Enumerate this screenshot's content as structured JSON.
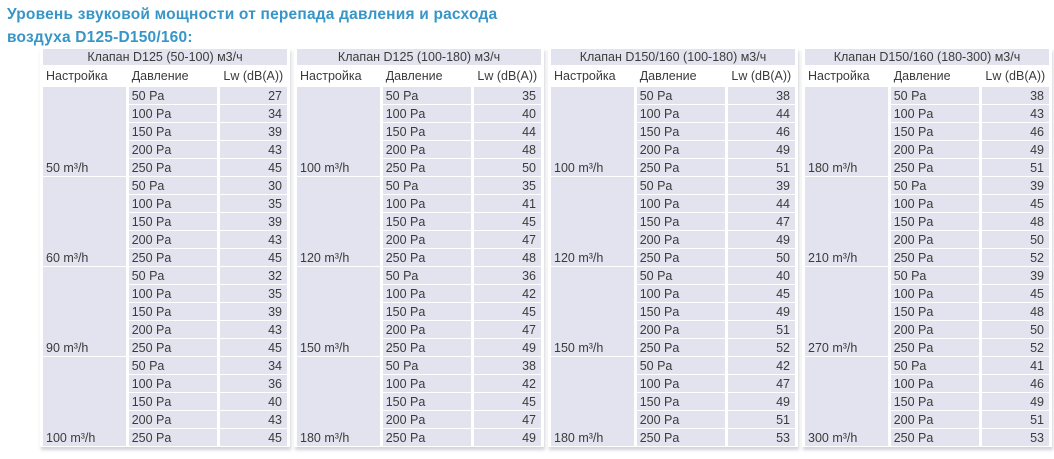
{
  "title_lines": [
    "Уровень звуковой мощности от перепада давления и расхода",
    "воздуха D125-D150/160:"
  ],
  "columns": {
    "setting": "Настройка",
    "pressure": "Давление",
    "lw": "Lw (dB(A))"
  },
  "colors": {
    "title": "#3796c7",
    "cell_bg": "#e2e3ee",
    "text": "#3b3b3b"
  },
  "tables": [
    {
      "header": "Клапан D125 (50-100) м3/ч",
      "groups": [
        {
          "setting": "50 m³/h",
          "rows": [
            {
              "pressure": "50 Pa",
              "lw": 27
            },
            {
              "pressure": "100 Pa",
              "lw": 34
            },
            {
              "pressure": "150 Pa",
              "lw": 39
            },
            {
              "pressure": "200 Pa",
              "lw": 43
            },
            {
              "pressure": "250 Pa",
              "lw": 45
            }
          ]
        },
        {
          "setting": "60 m³/h",
          "rows": [
            {
              "pressure": "50 Pa",
              "lw": 30
            },
            {
              "pressure": "100 Pa",
              "lw": 35
            },
            {
              "pressure": "150 Pa",
              "lw": 39
            },
            {
              "pressure": "200 Pa",
              "lw": 43
            },
            {
              "pressure": "250 Pa",
              "lw": 45
            }
          ]
        },
        {
          "setting": "90 m³/h",
          "rows": [
            {
              "pressure": "50 Pa",
              "lw": 32
            },
            {
              "pressure": "100 Pa",
              "lw": 35
            },
            {
              "pressure": "150 Pa",
              "lw": 39
            },
            {
              "pressure": "200 Pa",
              "lw": 43
            },
            {
              "pressure": "250 Pa",
              "lw": 45
            }
          ]
        },
        {
          "setting": "100 m³/h",
          "rows": [
            {
              "pressure": "50 Pa",
              "lw": 34
            },
            {
              "pressure": "100 Pa",
              "lw": 36
            },
            {
              "pressure": "150 Pa",
              "lw": 40
            },
            {
              "pressure": "200 Pa",
              "lw": 43
            },
            {
              "pressure": "250 Pa",
              "lw": 45
            }
          ]
        }
      ]
    },
    {
      "header": "Клапан D125 (100-180) м3/ч",
      "groups": [
        {
          "setting": "100 m³/h",
          "rows": [
            {
              "pressure": "50 Pa",
              "lw": 35
            },
            {
              "pressure": "100 Pa",
              "lw": 40
            },
            {
              "pressure": "150 Pa",
              "lw": 44
            },
            {
              "pressure": "200 Pa",
              "lw": 48
            },
            {
              "pressure": "250 Pa",
              "lw": 50
            }
          ]
        },
        {
          "setting": "120 m³/h",
          "rows": [
            {
              "pressure": "50 Pa",
              "lw": 35
            },
            {
              "pressure": "100 Pa",
              "lw": 41
            },
            {
              "pressure": "150 Pa",
              "lw": 45
            },
            {
              "pressure": "200 Pa",
              "lw": 47
            },
            {
              "pressure": "250 Pa",
              "lw": 48
            }
          ]
        },
        {
          "setting": "150 m³/h",
          "rows": [
            {
              "pressure": "50 Pa",
              "lw": 36
            },
            {
              "pressure": "100 Pa",
              "lw": 42
            },
            {
              "pressure": "150 Pa",
              "lw": 45
            },
            {
              "pressure": "200 Pa",
              "lw": 47
            },
            {
              "pressure": "250 Pa",
              "lw": 49
            }
          ]
        },
        {
          "setting": "180 m³/h",
          "rows": [
            {
              "pressure": "50 Pa",
              "lw": 38
            },
            {
              "pressure": "100 Pa",
              "lw": 42
            },
            {
              "pressure": "150 Pa",
              "lw": 45
            },
            {
              "pressure": "200 Pa",
              "lw": 47
            },
            {
              "pressure": "250 Pa",
              "lw": 49
            }
          ]
        }
      ]
    },
    {
      "header": "Клапан D150/160 (100-180) м3/ч",
      "groups": [
        {
          "setting": "100 m³/h",
          "rows": [
            {
              "pressure": "50 Pa",
              "lw": 38
            },
            {
              "pressure": "100 Pa",
              "lw": 44
            },
            {
              "pressure": "150 Pa",
              "lw": 46
            },
            {
              "pressure": "200 Pa",
              "lw": 49
            },
            {
              "pressure": "250 Pa",
              "lw": 51
            }
          ]
        },
        {
          "setting": "120 m³/h",
          "rows": [
            {
              "pressure": "50 Pa",
              "lw": 39
            },
            {
              "pressure": "100 Pa",
              "lw": 44
            },
            {
              "pressure": "150 Pa",
              "lw": 47
            },
            {
              "pressure": "200 Pa",
              "lw": 49
            },
            {
              "pressure": "250 Pa",
              "lw": 50
            }
          ]
        },
        {
          "setting": "150 m³/h",
          "rows": [
            {
              "pressure": "50 Pa",
              "lw": 40
            },
            {
              "pressure": "100 Pa",
              "lw": 45
            },
            {
              "pressure": "150 Pa",
              "lw": 49
            },
            {
              "pressure": "200 Pa",
              "lw": 51
            },
            {
              "pressure": "250 Pa",
              "lw": 52
            }
          ]
        },
        {
          "setting": "180 m³/h",
          "rows": [
            {
              "pressure": "50 Pa",
              "lw": 42
            },
            {
              "pressure": "100 Pa",
              "lw": 47
            },
            {
              "pressure": "150 Pa",
              "lw": 49
            },
            {
              "pressure": "200 Pa",
              "lw": 51
            },
            {
              "pressure": "250 Pa",
              "lw": 53
            }
          ]
        }
      ]
    },
    {
      "header": "Клапан D150/160 (180-300) м3/ч",
      "groups": [
        {
          "setting": "180 m³/h",
          "rows": [
            {
              "pressure": "50 Pa",
              "lw": 38
            },
            {
              "pressure": "100 Pa",
              "lw": 43
            },
            {
              "pressure": "150 Pa",
              "lw": 46
            },
            {
              "pressure": "200 Pa",
              "lw": 49
            },
            {
              "pressure": "250 Pa",
              "lw": 51
            }
          ]
        },
        {
          "setting": "210 m³/h",
          "rows": [
            {
              "pressure": "50 Pa",
              "lw": 39
            },
            {
              "pressure": "100 Pa",
              "lw": 45
            },
            {
              "pressure": "150 Pa",
              "lw": 48
            },
            {
              "pressure": "200 Pa",
              "lw": 50
            },
            {
              "pressure": "250 Pa",
              "lw": 52
            }
          ]
        },
        {
          "setting": "270 m³/h",
          "rows": [
            {
              "pressure": "50 Pa",
              "lw": 39
            },
            {
              "pressure": "100 Pa",
              "lw": 45
            },
            {
              "pressure": "150 Pa",
              "lw": 48
            },
            {
              "pressure": "200 Pa",
              "lw": 50
            },
            {
              "pressure": "250 Pa",
              "lw": 52
            }
          ]
        },
        {
          "setting": "300 m³/h",
          "rows": [
            {
              "pressure": "50 Pa",
              "lw": 41
            },
            {
              "pressure": "100 Pa",
              "lw": 46
            },
            {
              "pressure": "150 Pa",
              "lw": 49
            },
            {
              "pressure": "200 Pa",
              "lw": 51
            },
            {
              "pressure": "250 Pa",
              "lw": 53
            }
          ]
        }
      ]
    }
  ]
}
